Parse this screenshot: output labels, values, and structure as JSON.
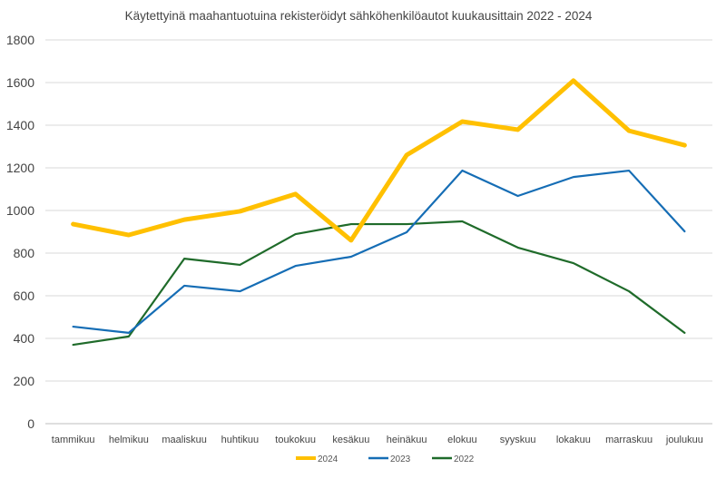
{
  "chart_data": {
    "type": "line",
    "title": "Käytettyinä maahantuotuina rekisteröidyt sähköhenkilöautot kuukausittain 2022 - 2024",
    "xlabel": "",
    "ylabel": "",
    "ylim": [
      0,
      1800
    ],
    "yticks": [
      0,
      200,
      400,
      600,
      800,
      1000,
      1200,
      1400,
      1600,
      1800
    ],
    "grid": true,
    "legend_position": "bottom",
    "categories": [
      "tammikuu",
      "helmikuu",
      "maaliskuu",
      "huhtikuu",
      "toukokuu",
      "kesäkuu",
      "heinäkuu",
      "elokuu",
      "syyskuu",
      "lokakuu",
      "marraskuu",
      "joulukuu"
    ],
    "series": [
      {
        "name": "2024",
        "color": "#FFC000",
        "values": [
          936,
          885,
          957,
          996,
          1077,
          860,
          1260,
          1417,
          1379,
          1609,
          1374,
          1306
        ]
      },
      {
        "name": "2023",
        "color": "#156DB5",
        "values": [
          455,
          426,
          647,
          621,
          740,
          783,
          898,
          1187,
          1068,
          1157,
          1187,
          902
        ]
      },
      {
        "name": "2022",
        "color": "#1F6B2A",
        "values": [
          370,
          409,
          774,
          745,
          889,
          936,
          936,
          949,
          826,
          753,
          621,
          426
        ]
      }
    ]
  }
}
